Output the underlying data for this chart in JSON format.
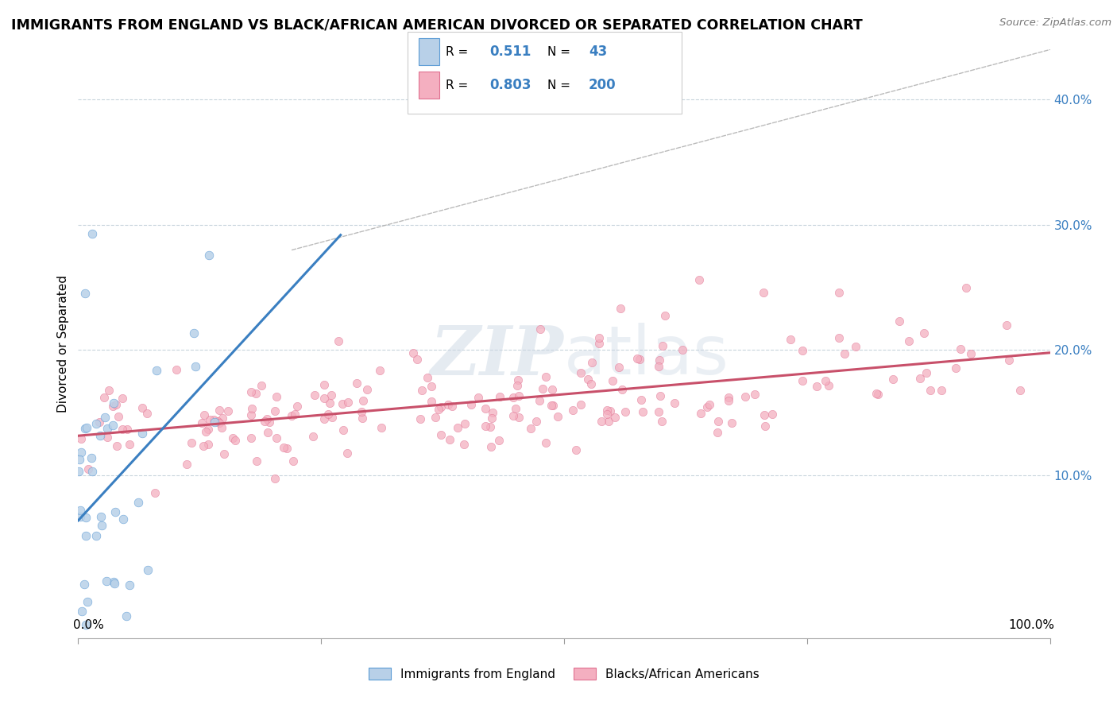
{
  "title": "IMMIGRANTS FROM ENGLAND VS BLACK/AFRICAN AMERICAN DIVORCED OR SEPARATED CORRELATION CHART",
  "source": "Source: ZipAtlas.com",
  "ylabel": "Divorced or Separated",
  "right_yticks": [
    "10.0%",
    "20.0%",
    "30.0%",
    "40.0%"
  ],
  "right_ytick_vals": [
    0.1,
    0.2,
    0.3,
    0.4
  ],
  "xlim": [
    0.0,
    1.0
  ],
  "ylim": [
    -0.03,
    0.44
  ],
  "blue_r": "0.511",
  "blue_n": "43",
  "pink_r": "0.803",
  "pink_n": "200",
  "blue_fill_color": "#b8d0e8",
  "blue_edge_color": "#5b9bd5",
  "pink_fill_color": "#f4afc0",
  "pink_edge_color": "#e07090",
  "blue_line_color": "#3a7fc1",
  "pink_line_color": "#c8506a",
  "grid_color": "#c8d4dc",
  "watermark_color": "#ccd8e4",
  "seed": 42
}
